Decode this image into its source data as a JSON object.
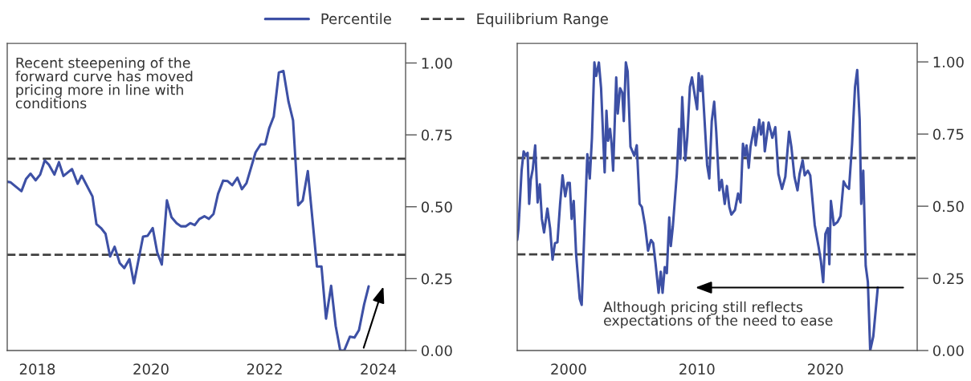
{
  "chart_data": [
    {
      "type": "line",
      "xlim": [
        2017.47,
        2024.48
      ],
      "xticks": [
        2018,
        2020,
        2022,
        2024
      ],
      "ylim": [
        0,
        1.068
      ],
      "yticks": [
        {
          "value": 0,
          "label": "0.00"
        },
        {
          "value": 0.25,
          "label": "0.25"
        },
        {
          "value": 0.5,
          "label": "0.50"
        },
        {
          "value": 0.75,
          "label": "0.75"
        },
        {
          "value": 1,
          "label": "1.00"
        }
      ],
      "grid": false,
      "legend": "top",
      "line_style": "solid",
      "marker": "none",
      "annotations": [
        "Recent steepening of the\nforward curve has moved\npricing more in line with\nconditions"
      ],
      "ref_lines": [
        {
          "axis": "y",
          "value": 0.667,
          "label": "Equilibrium Range",
          "color": "#404040",
          "line_style": "dashed"
        },
        {
          "axis": "y",
          "value": 0.333,
          "color": "#404040",
          "line_style": "dashed"
        }
      ],
      "series": [
        {
          "name": "Percentile",
          "color": "#3d50a5",
          "x": [
            2017.47,
            2017.53,
            2017.62,
            2017.72,
            2017.8,
            2017.88,
            2017.97,
            2018.05,
            2018.13,
            2018.2,
            2018.3,
            2018.38,
            2018.46,
            2018.61,
            2018.71,
            2018.78,
            2018.97,
            2019.04,
            2019.12,
            2019.2,
            2019.28,
            2019.36,
            2019.45,
            2019.53,
            2019.62,
            2019.7,
            2019.86,
            2019.94,
            2020.03,
            2020.11,
            2020.19,
            2020.28,
            2020.36,
            2020.45,
            2020.53,
            2020.61,
            2020.69,
            2020.77,
            2020.85,
            2020.94,
            2021.02,
            2021.1,
            2021.18,
            2021.27,
            2021.35,
            2021.43,
            2021.52,
            2021.6,
            2021.68,
            2021.84,
            2021.93,
            2022.01,
            2022.08,
            2022.16,
            2022.25,
            2022.33,
            2022.42,
            2022.5,
            2022.59,
            2022.67,
            2022.76,
            2022.92,
            2023.0,
            2023.08,
            2023.17,
            2023.25,
            2023.33,
            2023.4,
            2023.5,
            2023.58,
            2023.66,
            2023.75,
            2023.83
          ],
          "values": [
            0.587,
            0.585,
            0.57,
            0.554,
            0.596,
            0.615,
            0.592,
            0.612,
            0.661,
            0.647,
            0.612,
            0.655,
            0.607,
            0.631,
            0.58,
            0.608,
            0.536,
            0.44,
            0.426,
            0.406,
            0.327,
            0.361,
            0.304,
            0.287,
            0.318,
            0.234,
            0.396,
            0.399,
            0.426,
            0.341,
            0.299,
            0.522,
            0.464,
            0.443,
            0.432,
            0.432,
            0.443,
            0.436,
            0.457,
            0.467,
            0.458,
            0.475,
            0.545,
            0.591,
            0.589,
            0.575,
            0.601,
            0.561,
            0.582,
            0.689,
            0.717,
            0.717,
            0.773,
            0.814,
            0.967,
            0.972,
            0.865,
            0.8,
            0.505,
            0.522,
            0.624,
            0.292,
            0.292,
            0.111,
            0.225,
            0.085,
            0.0,
            0.0,
            0.048,
            0.045,
            0.071,
            0.16,
            0.223
          ]
        }
      ]
    },
    {
      "type": "line",
      "xlim": [
        1996.0,
        2027.15
      ],
      "xticks": [
        2000,
        2010,
        2020
      ],
      "ylim": [
        0,
        1.064
      ],
      "yticks": [
        {
          "value": 0,
          "label": "0.00"
        },
        {
          "value": 0.25,
          "label": "0.25"
        },
        {
          "value": 0.5,
          "label": "0.50"
        },
        {
          "value": 0.75,
          "label": "0.75"
        },
        {
          "value": 1,
          "label": "1.00"
        }
      ],
      "grid": false,
      "line_style": "solid",
      "marker": "none",
      "annotations": [
        "Although pricing still reflects\nexpectations of the need to ease"
      ],
      "ref_lines": [
        {
          "axis": "y",
          "value": 0.667,
          "color": "#404040",
          "line_style": "dashed"
        },
        {
          "axis": "y",
          "value": 0.333,
          "color": "#404040",
          "line_style": "dashed"
        }
      ],
      "series": [
        {
          "color": "#3d50a5",
          "x": [
            1996.0,
            1996.1,
            1996.34,
            1996.5,
            1996.67,
            1996.81,
            1996.93,
            1997.05,
            1997.21,
            1997.4,
            1997.59,
            1997.76,
            1997.92,
            1998.09,
            1998.35,
            1998.56,
            1998.75,
            1998.94,
            1999.13,
            1999.34,
            1999.53,
            1999.74,
            1999.93,
            2000.09,
            2000.24,
            2000.4,
            2000.59,
            2000.87,
            2001.02,
            2001.23,
            2001.46,
            2001.65,
            2001.82,
            2002.01,
            2002.15,
            2002.36,
            2002.53,
            2002.81,
            2002.95,
            2003.07,
            2003.23,
            2003.35,
            2003.47,
            2003.71,
            2003.83,
            2004.01,
            2004.18,
            2004.3,
            2004.46,
            2004.6,
            2004.82,
            2005.12,
            2005.31,
            2005.53,
            2005.71,
            2005.95,
            2006.19,
            2006.42,
            2006.59,
            2006.78,
            2007.01,
            2007.18,
            2007.32,
            2007.49,
            2007.65,
            2007.84,
            2007.96,
            2008.12,
            2008.43,
            2008.6,
            2008.71,
            2008.85,
            2009.09,
            2009.25,
            2009.45,
            2009.61,
            2009.85,
            2010.01,
            2010.13,
            2010.27,
            2010.39,
            2010.56,
            2010.79,
            2010.96,
            2011.15,
            2011.34,
            2011.5,
            2011.74,
            2011.93,
            2012.16,
            2012.33,
            2012.52,
            2012.68,
            2012.96,
            2013.2,
            2013.39,
            2013.58,
            2013.74,
            2013.86,
            2014.03,
            2014.17,
            2014.45,
            2014.57,
            2014.85,
            2014.99,
            2015.16,
            2015.28,
            2015.58,
            2015.87,
            2016.1,
            2016.34,
            2016.62,
            2016.88,
            2017.17,
            2017.35,
            2017.59,
            2017.83,
            2017.99,
            2018.23,
            2018.39,
            2018.63,
            2018.82,
            2019.17,
            2019.48,
            2019.65,
            2019.83,
            2020.0,
            2020.19,
            2020.31,
            2020.43,
            2020.66,
            2020.94,
            2021.18,
            2021.42,
            2021.61,
            2021.84,
            2022.08,
            2022.31,
            2022.48,
            2022.67,
            2022.79,
            2022.95,
            2023.14,
            2023.31,
            2023.49,
            2023.73,
            2024.08
          ],
          "values": [
            0.383,
            0.424,
            0.623,
            0.69,
            0.675,
            0.685,
            0.508,
            0.591,
            0.628,
            0.711,
            0.513,
            0.576,
            0.456,
            0.409,
            0.492,
            0.424,
            0.315,
            0.372,
            0.375,
            0.508,
            0.607,
            0.534,
            0.581,
            0.581,
            0.456,
            0.518,
            0.331,
            0.179,
            0.158,
            0.414,
            0.68,
            0.596,
            0.737,
            0.998,
            0.951,
            0.998,
            0.909,
            0.617,
            0.831,
            0.727,
            0.768,
            0.716,
            0.623,
            0.946,
            0.821,
            0.909,
            0.894,
            0.795,
            0.998,
            0.967,
            0.706,
            0.675,
            0.711,
            0.508,
            0.497,
            0.435,
            0.346,
            0.383,
            0.372,
            0.299,
            0.2,
            0.273,
            0.2,
            0.289,
            0.268,
            0.461,
            0.362,
            0.43,
            0.612,
            0.768,
            0.664,
            0.878,
            0.659,
            0.742,
            0.914,
            0.946,
            0.878,
            0.836,
            0.961,
            0.899,
            0.951,
            0.821,
            0.643,
            0.596,
            0.795,
            0.862,
            0.758,
            0.555,
            0.591,
            0.508,
            0.57,
            0.497,
            0.471,
            0.487,
            0.544,
            0.513,
            0.716,
            0.675,
            0.711,
            0.633,
            0.706,
            0.774,
            0.711,
            0.8,
            0.748,
            0.79,
            0.69,
            0.79,
            0.737,
            0.774,
            0.612,
            0.56,
            0.602,
            0.758,
            0.706,
            0.602,
            0.555,
            0.612,
            0.659,
            0.607,
            0.623,
            0.607,
            0.435,
            0.357,
            0.31,
            0.237,
            0.404,
            0.424,
            0.299,
            0.518,
            0.435,
            0.445,
            0.466,
            0.586,
            0.57,
            0.56,
            0.716,
            0.914,
            0.972,
            0.8,
            0.508,
            0.623,
            0.294,
            0.237,
            0.0,
            0.049,
            0.218
          ]
        }
      ]
    }
  ]
}
